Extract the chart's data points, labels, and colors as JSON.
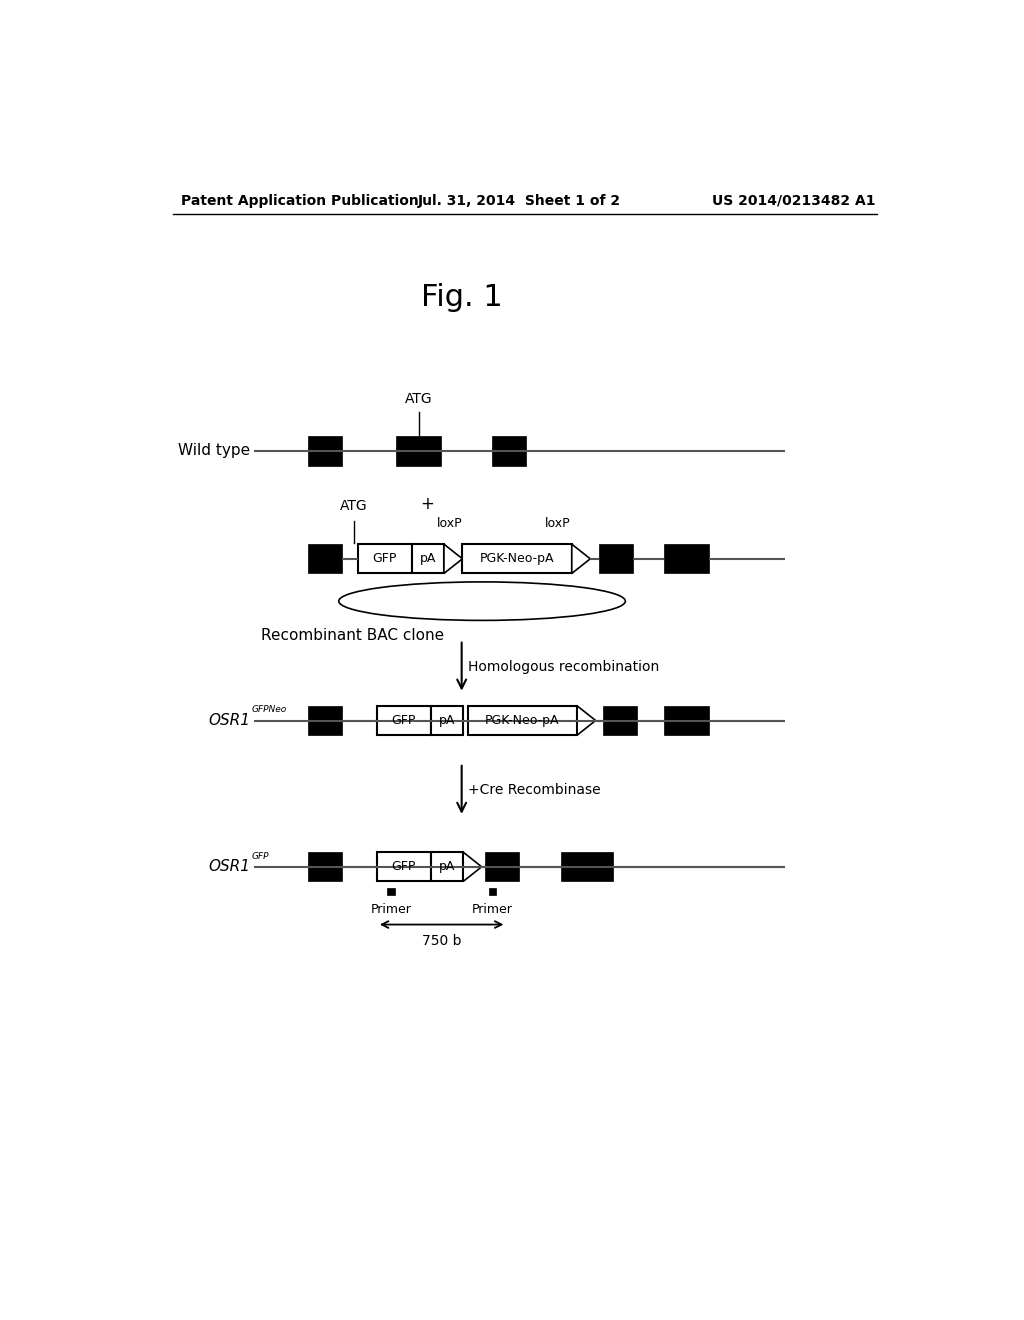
{
  "bg_color": "#ffffff",
  "header_left": "Patent Application Publication",
  "header_mid": "Jul. 31, 2014  Sheet 1 of 2",
  "header_right": "US 2014/0213482 A1",
  "fig_label": "Fig. 1",
  "wild_type_label": "Wild type",
  "atg_label": "ATG",
  "plus_label": "+",
  "loxp1_label": "loxP",
  "loxp2_label": "loxP",
  "bac_label": "Recombinant BAC clone",
  "hom_rec_label": "Homologous recombination",
  "osr1_gfpneo_label": "OSR1",
  "osr1_gfpneo_sup": "GFPNeo",
  "osr1_gfp_label": "OSR1",
  "osr1_gfp_sup": "GFP",
  "cre_label": "+Cre Recombinase",
  "primer1_label": "Primer",
  "primer2_label": "Primer",
  "bp_label": "750 b",
  "black": "#000000",
  "white": "#ffffff",
  "line_color": "#555555"
}
